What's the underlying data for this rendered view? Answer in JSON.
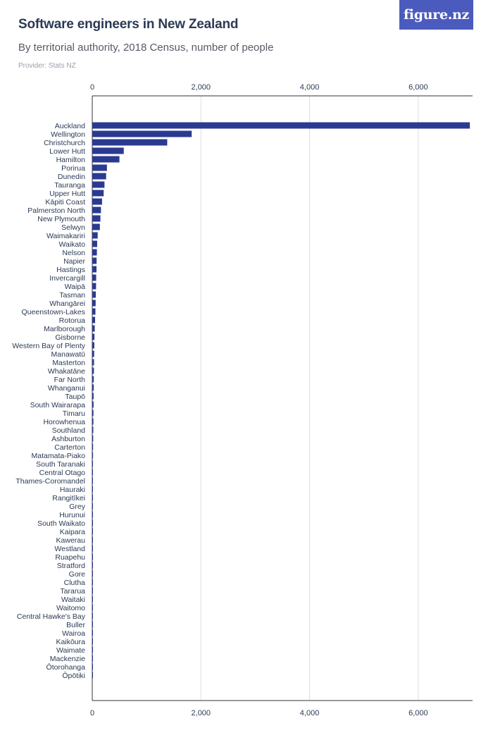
{
  "header": {
    "title": "Software engineers in New Zealand",
    "subtitle": "By territorial authority, 2018 Census, number of people",
    "provider": "Provider: Stats NZ",
    "logo_text": "figure.nz"
  },
  "colors": {
    "bar": "#2b3a91",
    "grid": "#dcdcdc",
    "axis": "#333333",
    "label": "#2b3a55",
    "logo_bg": "#4b5bbd"
  },
  "chart_data": {
    "type": "bar",
    "orientation": "horizontal",
    "title": "Software engineers in New Zealand",
    "subtitle": "By territorial authority, 2018 Census, number of people",
    "xlim": [
      0,
      7000
    ],
    "xticks": [
      0,
      2000,
      4000,
      6000
    ],
    "xtick_labels": [
      "0",
      "2,000",
      "4,000",
      "6,000"
    ],
    "grid": true,
    "categories": [
      "Auckland",
      "Wellington",
      "Christchurch",
      "Lower Hutt",
      "Hamilton",
      "Porirua",
      "Dunedin",
      "Tauranga",
      "Upper Hutt",
      "Kāpiti Coast",
      "Palmerston North",
      "New Plymouth",
      "Selwyn",
      "Waimakariri",
      "Waikato",
      "Nelson",
      "Napier",
      "Hastings",
      "Invercargill",
      "Waipā",
      "Tasman",
      "Whangārei",
      "Queenstown-Lakes",
      "Rotorua",
      "Marlborough",
      "Gisborne",
      "Western Bay of Plenty",
      "Manawatū",
      "Masterton",
      "Whakatāne",
      "Far North",
      "Whanganui",
      "Taupō",
      "South Wairarapa",
      "Timaru",
      "Horowhenua",
      "Southland",
      "Ashburton",
      "Carterton",
      "Matamata-Piako",
      "South Taranaki",
      "Central Otago",
      "Thames-Coromandel",
      "Hauraki",
      "Rangitīkei",
      "Grey",
      "Hurunui",
      "South Waikato",
      "Kaipara",
      "Kawerau",
      "Westland",
      "Ruapehu",
      "Stratford",
      "Gore",
      "Clutha",
      "Tararua",
      "Waitaki",
      "Waitomo",
      "Central Hawke's Bay",
      "Buller",
      "Wairoa",
      "Kaikōura",
      "Waimate",
      "Mackenzie",
      "Ōtorohanga",
      "Ōpōtiki"
    ],
    "values": [
      6950,
      1830,
      1380,
      580,
      500,
      270,
      255,
      225,
      210,
      180,
      160,
      150,
      140,
      100,
      90,
      85,
      80,
      78,
      72,
      70,
      65,
      62,
      58,
      52,
      45,
      40,
      38,
      35,
      32,
      30,
      28,
      27,
      25,
      24,
      22,
      21,
      19,
      17,
      15,
      14,
      13,
      12,
      12,
      11,
      10,
      10,
      9,
      9,
      8,
      8,
      7,
      7,
      6,
      6,
      5,
      5,
      5,
      4,
      4,
      4,
      3,
      3,
      3,
      2,
      2,
      2
    ]
  }
}
